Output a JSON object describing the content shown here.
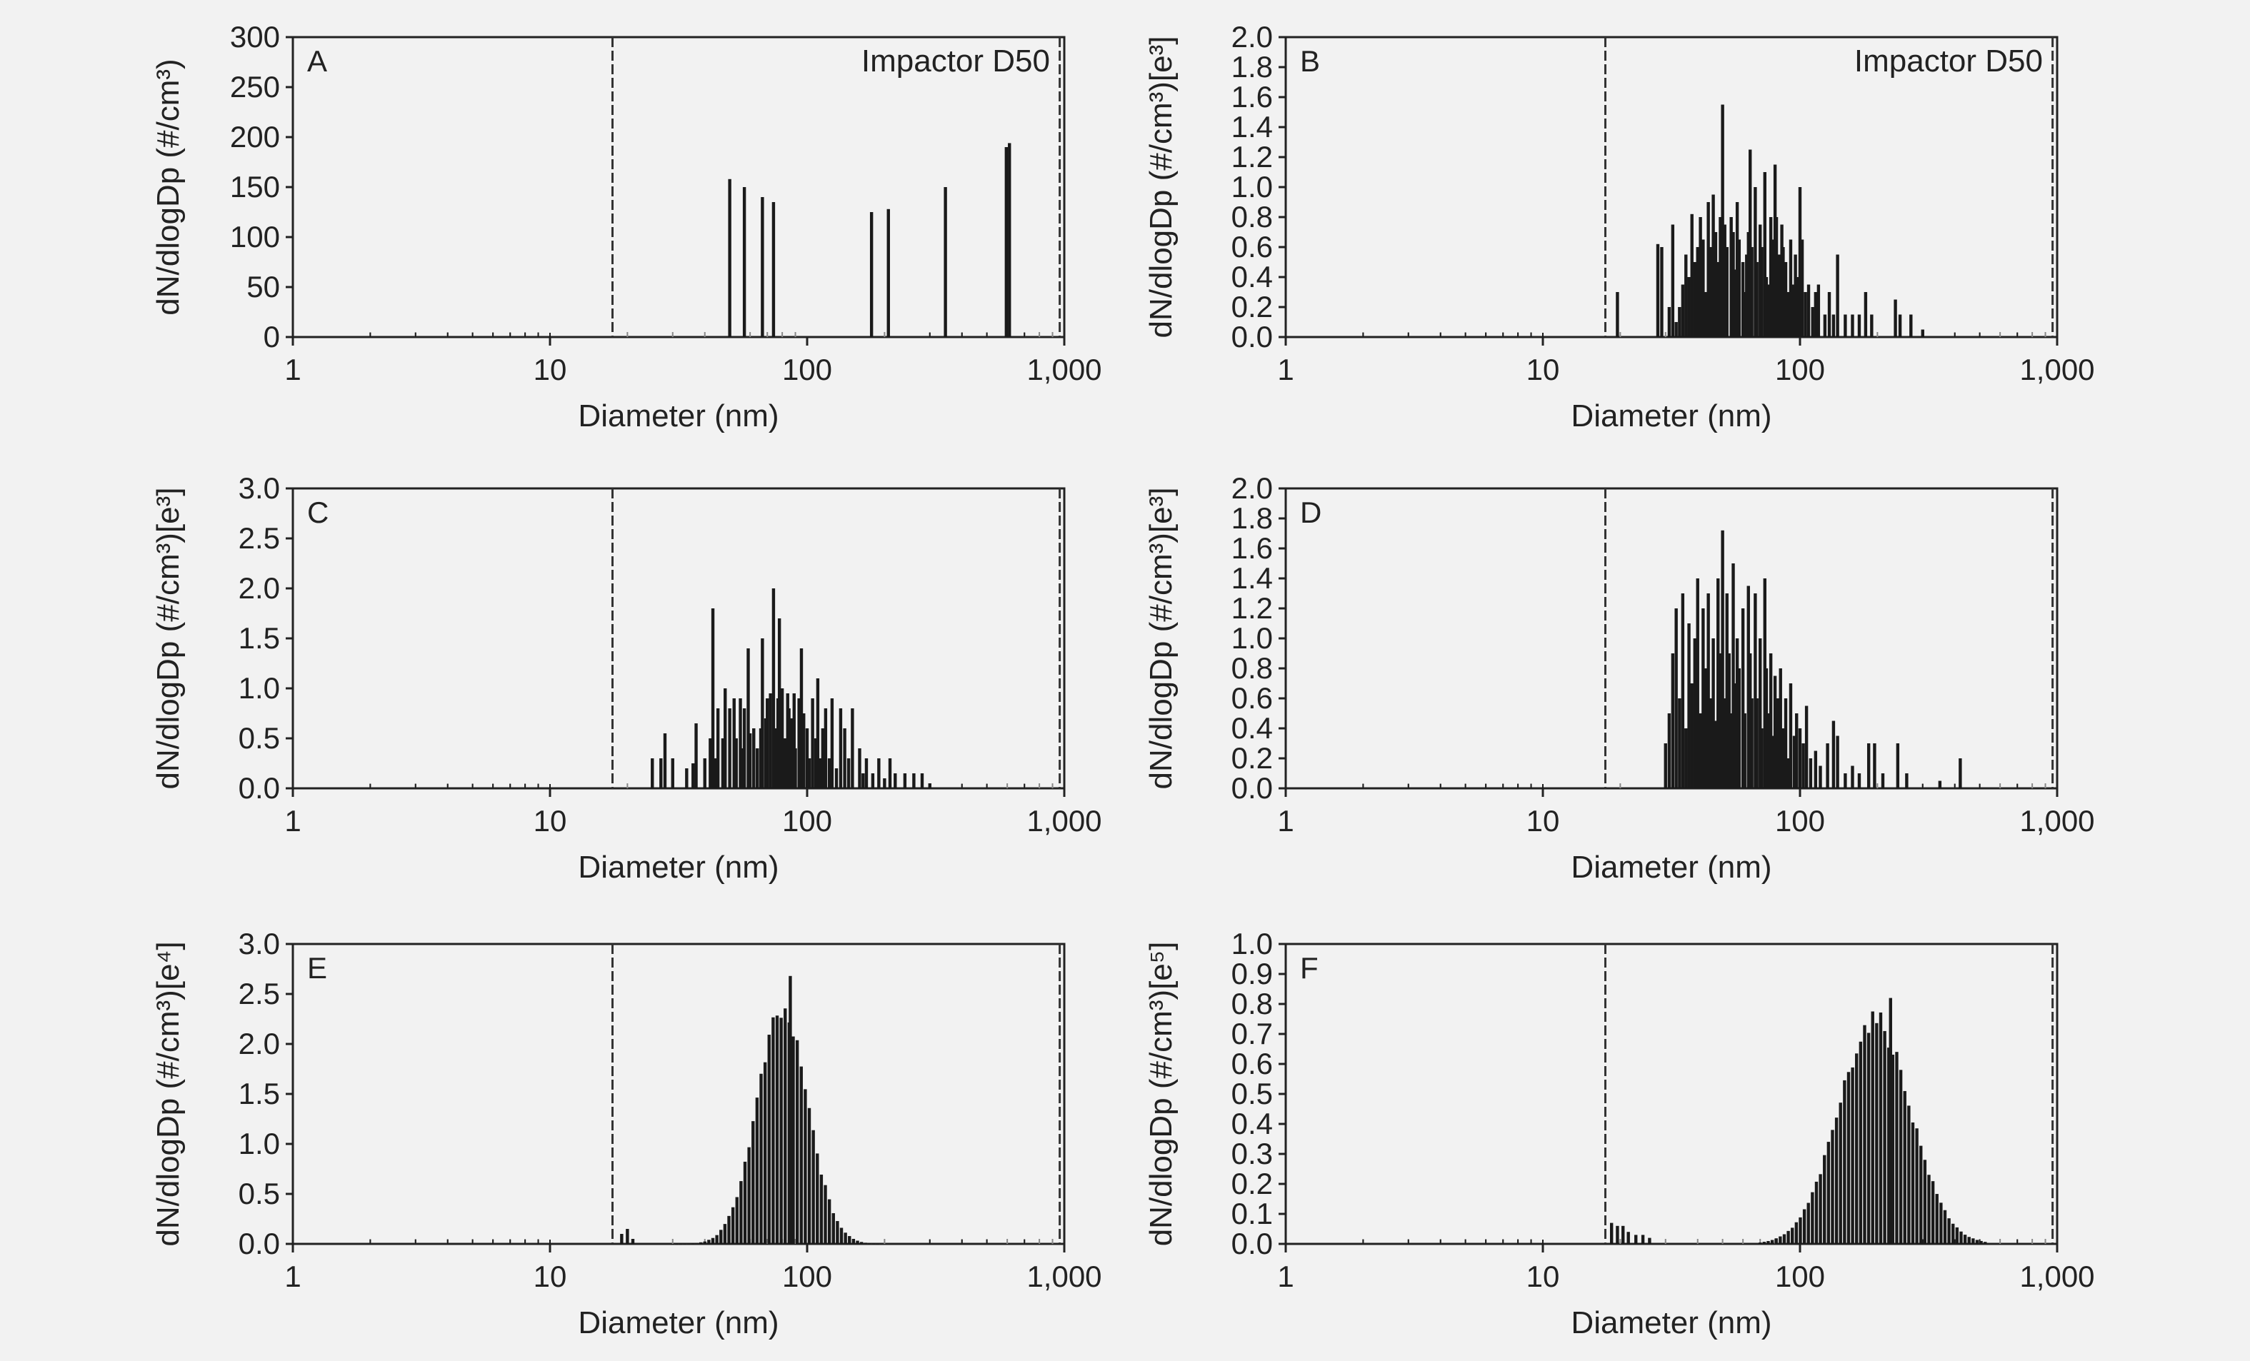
{
  "figure": {
    "background": "#f2f2f2",
    "bar_color": "#1a1a1a",
    "frame_color": "#222222"
  },
  "chart_data": [
    {
      "panel": "A",
      "type": "bar",
      "x_scale": "log",
      "xlabel": "Diameter (nm)",
      "ylabel": "dN/dlogDp (#/cm³)",
      "y_exponent": "",
      "xlim": [
        1,
        1000
      ],
      "xticks": [
        1,
        10,
        100,
        1000
      ],
      "xtick_labels": [
        "1",
        "10",
        "100",
        "1,000"
      ],
      "ylim": [
        0,
        300
      ],
      "yticks": [
        0,
        50,
        100,
        150,
        200,
        250,
        300
      ],
      "ytick_labels": [
        "0",
        "50",
        "100",
        "150",
        "200",
        "250",
        "300"
      ],
      "dashed_lines": [
        17.5,
        960
      ],
      "annotation": "Impactor D50",
      "bars": [
        [
          50,
          158
        ],
        [
          57,
          150
        ],
        [
          67,
          140
        ],
        [
          74,
          135
        ],
        [
          178,
          125
        ],
        [
          207,
          128
        ],
        [
          345,
          150
        ],
        [
          595,
          190
        ],
        [
          612,
          194
        ]
      ]
    },
    {
      "panel": "B",
      "type": "bar",
      "x_scale": "log",
      "xlabel": "Diameter (nm)",
      "ylabel": "dN/dlogDp (#/cm³)[e³]",
      "y_exponent": "3",
      "xlim": [
        1,
        1000
      ],
      "xticks": [
        1,
        10,
        100,
        1000
      ],
      "xtick_labels": [
        "1",
        "10",
        "100",
        "1,000"
      ],
      "ylim": [
        0,
        2.0
      ],
      "yticks": [
        0,
        0.2,
        0.4,
        0.6,
        0.8,
        1.0,
        1.2,
        1.4,
        1.6,
        1.8,
        2.0
      ],
      "ytick_labels": [
        "0.0",
        "0.2",
        "0.4",
        "0.6",
        "0.8",
        "1.0",
        "1.2",
        "1.4",
        "1.6",
        "1.8",
        "2.0"
      ],
      "dashed_lines": [
        17.5,
        960
      ],
      "annotation": "Impactor D50",
      "bars": [
        [
          19.5,
          0.3
        ],
        [
          28,
          0.62
        ],
        [
          29,
          0.6
        ],
        [
          31,
          0.2
        ],
        [
          32,
          0.75
        ],
        [
          33,
          0.1
        ],
        [
          34,
          0.2
        ],
        [
          35,
          0.35
        ],
        [
          36,
          0.55
        ],
        [
          37,
          0.4
        ],
        [
          38,
          0.82
        ],
        [
          39,
          0.5
        ],
        [
          40,
          0.6
        ],
        [
          41,
          0.8
        ],
        [
          42,
          0.65
        ],
        [
          43,
          0.3
        ],
        [
          44,
          0.9
        ],
        [
          45,
          0.6
        ],
        [
          46,
          0.95
        ],
        [
          47,
          0.7
        ],
        [
          48,
          0.5
        ],
        [
          49,
          0.8
        ],
        [
          50,
          1.55
        ],
        [
          51,
          0.75
        ],
        [
          52,
          0.6
        ],
        [
          54,
          0.8
        ],
        [
          55,
          0.7
        ],
        [
          56,
          0.45
        ],
        [
          57,
          0.9
        ],
        [
          58,
          0.65
        ],
        [
          60,
          0.5
        ],
        [
          61,
          0.3
        ],
        [
          62,
          0.55
        ],
        [
          63,
          0.7
        ],
        [
          64,
          1.25
        ],
        [
          65,
          0.6
        ],
        [
          67,
          1.0
        ],
        [
          68,
          0.5
        ],
        [
          70,
          0.75
        ],
        [
          71,
          0.6
        ],
        [
          73,
          1.1
        ],
        [
          74,
          0.4
        ],
        [
          75,
          0.35
        ],
        [
          77,
          0.8
        ],
        [
          78,
          0.65
        ],
        [
          80,
          1.15
        ],
        [
          81,
          0.8
        ],
        [
          83,
          0.55
        ],
        [
          85,
          0.75
        ],
        [
          86,
          0.6
        ],
        [
          88,
          0.5
        ],
        [
          90,
          0.3
        ],
        [
          92,
          0.65
        ],
        [
          94,
          0.35
        ],
        [
          96,
          0.55
        ],
        [
          98,
          0.4
        ],
        [
          100,
          1.0
        ],
        [
          102,
          0.65
        ],
        [
          105,
          0.3
        ],
        [
          108,
          0.35
        ],
        [
          112,
          0.2
        ],
        [
          115,
          0.3
        ],
        [
          118,
          0.35
        ],
        [
          125,
          0.15
        ],
        [
          130,
          0.3
        ],
        [
          135,
          0.15
        ],
        [
          140,
          0.55
        ],
        [
          150,
          0.15
        ],
        [
          160,
          0.15
        ],
        [
          170,
          0.15
        ],
        [
          180,
          0.3
        ],
        [
          190,
          0.15
        ],
        [
          235,
          0.25
        ],
        [
          245,
          0.15
        ],
        [
          270,
          0.15
        ],
        [
          300,
          0.05
        ]
      ]
    },
    {
      "panel": "C",
      "type": "bar",
      "x_scale": "log",
      "xlabel": "Diameter (nm)",
      "ylabel": "dN/dlogDp (#/cm³)[e³]",
      "y_exponent": "3",
      "xlim": [
        1,
        1000
      ],
      "xticks": [
        1,
        10,
        100,
        1000
      ],
      "xtick_labels": [
        "1",
        "10",
        "100",
        "1,000"
      ],
      "ylim": [
        0,
        3.0
      ],
      "yticks": [
        0,
        0.5,
        1.0,
        1.5,
        2.0,
        2.5,
        3.0
      ],
      "ytick_labels": [
        "0.0",
        "0.5",
        "1.0",
        "1.5",
        "2.0",
        "2.5",
        "3.0"
      ],
      "dashed_lines": [
        17.5,
        960
      ],
      "annotation": "",
      "bars": [
        [
          25,
          0.3
        ],
        [
          27,
          0.3
        ],
        [
          28,
          0.55
        ],
        [
          30,
          0.3
        ],
        [
          34,
          0.2
        ],
        [
          36,
          0.25
        ],
        [
          37,
          0.65
        ],
        [
          40,
          0.3
        ],
        [
          42,
          0.5
        ],
        [
          43,
          1.8
        ],
        [
          44,
          0.3
        ],
        [
          45,
          0.8
        ],
        [
          47,
          0.5
        ],
        [
          48,
          1.0
        ],
        [
          50,
          0.8
        ],
        [
          52,
          0.9
        ],
        [
          53,
          0.5
        ],
        [
          55,
          0.9
        ],
        [
          56,
          0.4
        ],
        [
          57,
          0.8
        ],
        [
          59,
          1.4
        ],
        [
          60,
          0.55
        ],
        [
          62,
          0.6
        ],
        [
          64,
          0.4
        ],
        [
          66,
          0.6
        ],
        [
          67,
          1.5
        ],
        [
          69,
          0.7
        ],
        [
          70,
          0.9
        ],
        [
          72,
          0.95
        ],
        [
          74,
          2.0
        ],
        [
          75,
          0.6
        ],
        [
          77,
          0.9
        ],
        [
          78,
          1.7
        ],
        [
          80,
          1.0
        ],
        [
          82,
          0.5
        ],
        [
          84,
          0.95
        ],
        [
          85,
          0.8
        ],
        [
          87,
          0.7
        ],
        [
          89,
          0.95
        ],
        [
          90,
          0.4
        ],
        [
          93,
          0.9
        ],
        [
          95,
          1.4
        ],
        [
          97,
          0.75
        ],
        [
          100,
          0.6
        ],
        [
          102,
          0.3
        ],
        [
          105,
          0.9
        ],
        [
          108,
          0.5
        ],
        [
          110,
          1.1
        ],
        [
          113,
          0.3
        ],
        [
          115,
          0.6
        ],
        [
          118,
          0.8
        ],
        [
          122,
          0.3
        ],
        [
          125,
          0.9
        ],
        [
          130,
          0.2
        ],
        [
          135,
          0.8
        ],
        [
          140,
          0.6
        ],
        [
          145,
          0.3
        ],
        [
          150,
          0.8
        ],
        [
          160,
          0.4
        ],
        [
          165,
          0.15
        ],
        [
          170,
          0.3
        ],
        [
          180,
          0.15
        ],
        [
          190,
          0.3
        ],
        [
          200,
          0.1
        ],
        [
          210,
          0.3
        ],
        [
          220,
          0.15
        ],
        [
          240,
          0.15
        ],
        [
          260,
          0.15
        ],
        [
          280,
          0.15
        ],
        [
          300,
          0.05
        ]
      ]
    },
    {
      "panel": "D",
      "type": "bar",
      "x_scale": "log",
      "xlabel": "Diameter (nm)",
      "ylabel": "dN/dlogDp (#/cm³)[e³]",
      "y_exponent": "3",
      "xlim": [
        1,
        1000
      ],
      "xticks": [
        1,
        10,
        100,
        1000
      ],
      "xtick_labels": [
        "1",
        "10",
        "100",
        "1,000"
      ],
      "ylim": [
        0,
        2.0
      ],
      "yticks": [
        0,
        0.2,
        0.4,
        0.6,
        0.8,
        1.0,
        1.2,
        1.4,
        1.6,
        1.8,
        2.0
      ],
      "ytick_labels": [
        "0.0",
        "0.2",
        "0.4",
        "0.6",
        "0.8",
        "1.0",
        "1.2",
        "1.4",
        "1.6",
        "1.8",
        "2.0"
      ],
      "dashed_lines": [
        17.5,
        960
      ],
      "annotation": "",
      "bars": [
        [
          30,
          0.3
        ],
        [
          31,
          0.5
        ],
        [
          32,
          0.9
        ],
        [
          33,
          1.2
        ],
        [
          34,
          0.6
        ],
        [
          35,
          1.3
        ],
        [
          36,
          0.4
        ],
        [
          37,
          1.1
        ],
        [
          38,
          0.7
        ],
        [
          39,
          1.0
        ],
        [
          40,
          1.4
        ],
        [
          41,
          0.5
        ],
        [
          42,
          1.2
        ],
        [
          43,
          0.8
        ],
        [
          44,
          1.3
        ],
        [
          45,
          0.6
        ],
        [
          46,
          1.0
        ],
        [
          47,
          0.45
        ],
        [
          48,
          1.4
        ],
        [
          49,
          0.9
        ],
        [
          50,
          1.72
        ],
        [
          51,
          0.6
        ],
        [
          52,
          1.3
        ],
        [
          53,
          0.9
        ],
        [
          54,
          0.5
        ],
        [
          55,
          1.5
        ],
        [
          56,
          0.7
        ],
        [
          57,
          1.0
        ],
        [
          58,
          0.8
        ],
        [
          60,
          1.2
        ],
        [
          61,
          0.5
        ],
        [
          63,
          1.35
        ],
        [
          64,
          0.9
        ],
        [
          65,
          0.6
        ],
        [
          67,
          1.3
        ],
        [
          68,
          0.6
        ],
        [
          70,
          1.0
        ],
        [
          71,
          0.4
        ],
        [
          73,
          1.4
        ],
        [
          74,
          0.8
        ],
        [
          75,
          0.5
        ],
        [
          77,
          0.9
        ],
        [
          78,
          0.35
        ],
        [
          80,
          0.75
        ],
        [
          82,
          0.6
        ],
        [
          84,
          0.8
        ],
        [
          86,
          0.4
        ],
        [
          88,
          0.6
        ],
        [
          90,
          0.2
        ],
        [
          92,
          0.7
        ],
        [
          95,
          0.35
        ],
        [
          97,
          0.5
        ],
        [
          100,
          0.4
        ],
        [
          103,
          0.3
        ],
        [
          106,
          0.55
        ],
        [
          110,
          0.2
        ],
        [
          115,
          0.25
        ],
        [
          120,
          0.15
        ],
        [
          128,
          0.3
        ],
        [
          135,
          0.45
        ],
        [
          140,
          0.35
        ],
        [
          150,
          0.1
        ],
        [
          160,
          0.15
        ],
        [
          170,
          0.1
        ],
        [
          185,
          0.3
        ],
        [
          195,
          0.3
        ],
        [
          210,
          0.1
        ],
        [
          240,
          0.3
        ],
        [
          260,
          0.1
        ],
        [
          350,
          0.05
        ],
        [
          420,
          0.2
        ]
      ]
    },
    {
      "panel": "E",
      "type": "bar",
      "x_scale": "log",
      "xlabel": "Diameter (nm)",
      "ylabel": "dN/dlogDp (#/cm³)[e⁴]",
      "y_exponent": "4",
      "xlim": [
        1,
        1000
      ],
      "xticks": [
        1,
        10,
        100,
        1000
      ],
      "xtick_labels": [
        "1",
        "10",
        "100",
        "1,000"
      ],
      "ylim": [
        0,
        3.0
      ],
      "yticks": [
        0,
        0.5,
        1.0,
        1.5,
        2.0,
        2.5,
        3.0
      ],
      "ytick_labels": [
        "0.0",
        "0.5",
        "1.0",
        "1.5",
        "2.0",
        "2.5",
        "3.0"
      ],
      "dashed_lines": [
        17.5,
        960
      ],
      "annotation": "",
      "distribution": {
        "mode": 80,
        "peak": 2.35,
        "sigma_log10": 0.1,
        "from": 30,
        "to": 190,
        "bins_per_decade": 64
      },
      "bars": [
        [
          19,
          0.1
        ],
        [
          20,
          0.15
        ],
        [
          21,
          0.05
        ],
        [
          86,
          2.68
        ]
      ]
    },
    {
      "panel": "F",
      "type": "bar",
      "x_scale": "log",
      "xlabel": "Diameter (nm)",
      "ylabel": "dN/dlogDp (#/cm³)[e⁵]",
      "y_exponent": "5",
      "xlim": [
        1,
        1000
      ],
      "xticks": [
        1,
        10,
        100,
        1000
      ],
      "xtick_labels": [
        "1",
        "10",
        "100",
        "1,000"
      ],
      "ylim": [
        0,
        1.0
      ],
      "yticks": [
        0,
        0.1,
        0.2,
        0.3,
        0.4,
        0.5,
        0.6,
        0.7,
        0.8,
        0.9,
        1.0
      ],
      "ytick_labels": [
        "0.0",
        "0.1",
        "0.2",
        "0.3",
        "0.4",
        "0.5",
        "0.6",
        "0.7",
        "0.8",
        "0.9",
        "1.0"
      ],
      "dashed_lines": [
        17.5,
        960
      ],
      "annotation": "",
      "distribution": {
        "mode": 195,
        "peak": 0.76,
        "sigma_log10": 0.14,
        "from": 70,
        "to": 520,
        "bins_per_decade": 64
      },
      "bars": [
        [
          18.5,
          0.07
        ],
        [
          19.5,
          0.06
        ],
        [
          20.5,
          0.06
        ],
        [
          21.5,
          0.04
        ],
        [
          23,
          0.03
        ],
        [
          24.5,
          0.03
        ],
        [
          26,
          0.02
        ],
        [
          225,
          0.82
        ]
      ]
    }
  ]
}
